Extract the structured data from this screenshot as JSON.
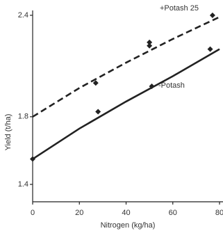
{
  "chart_data": {
    "type": "scatter",
    "x_label": "Nitrogen (kg/ha)",
    "y_label": "Yield (t/ha)",
    "xlim": [
      0,
      80
    ],
    "xticks": [
      0,
      20,
      40,
      60,
      80
    ],
    "ylim": [
      1.4,
      2.4
    ],
    "yticks": [
      1.4,
      1.8,
      2.4
    ],
    "fit_x": [
      0,
      20,
      40,
      60,
      80
    ],
    "series": [
      {
        "name": "+Potash 25",
        "color": "#222222",
        "dashed": true,
        "x": [
          27,
          50,
          50,
          77
        ],
        "values": [
          2.0,
          2.24,
          2.22,
          2.4
        ],
        "fit_values": [
          1.8,
          1.97,
          2.12,
          2.26,
          2.39
        ]
      },
      {
        "name": "-Potash",
        "color": "#222222",
        "dashed": false,
        "x": [
          0,
          28,
          51,
          76
        ],
        "values": [
          1.55,
          1.83,
          1.98,
          2.2
        ],
        "fit_values": [
          1.55,
          1.73,
          1.89,
          2.04,
          2.2
        ]
      }
    ]
  }
}
